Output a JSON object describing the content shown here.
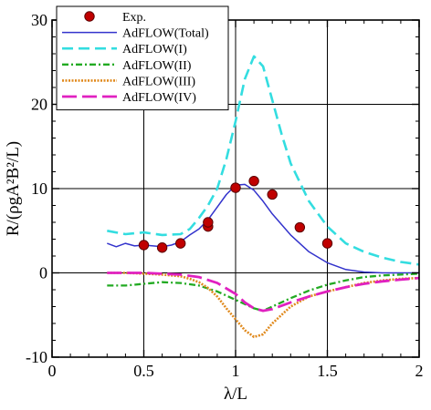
{
  "chart_data": {
    "type": "line",
    "title": "",
    "xlabel": "λ/L",
    "ylabel": "R/(ρgA²B²/L)",
    "xlim": [
      0,
      2
    ],
    "ylim": [
      -10,
      30
    ],
    "x_ticks": [
      0,
      0.5,
      1,
      1.5,
      2
    ],
    "y_ticks": [
      -10,
      0,
      10,
      20,
      30
    ],
    "x_tick_labels": [
      "0",
      "0.5",
      "1",
      "1.5",
      "2"
    ],
    "y_tick_labels": [
      "-10",
      "0",
      "10",
      "20",
      "30"
    ],
    "grid": true,
    "legend_position": "top-left",
    "series": [
      {
        "name": "Exp.",
        "style": "markers",
        "color": "#c00000",
        "x": [
          0.5,
          0.6,
          0.7,
          0.85,
          0.85,
          1.0,
          1.1,
          1.2,
          1.35,
          1.5
        ],
        "y": [
          3.3,
          3.0,
          3.5,
          5.5,
          6.0,
          10.1,
          10.9,
          9.3,
          5.4,
          3.5
        ]
      },
      {
        "name": "AdFLOW(Total)",
        "style": "solid",
        "color": "#3333cc",
        "x": [
          0.3,
          0.35,
          0.4,
          0.45,
          0.5,
          0.55,
          0.6,
          0.65,
          0.7,
          0.75,
          0.8,
          0.85,
          0.9,
          0.95,
          1.0,
          1.05,
          1.1,
          1.15,
          1.2,
          1.3,
          1.4,
          1.5,
          1.6,
          1.7,
          1.8,
          1.9,
          2.0
        ],
        "y": [
          3.5,
          3.1,
          3.5,
          3.2,
          3.3,
          3.2,
          3.1,
          3.3,
          3.7,
          4.5,
          5.2,
          6.3,
          7.8,
          9.3,
          10.4,
          10.5,
          9.8,
          8.5,
          7.0,
          4.5,
          2.5,
          1.2,
          0.4,
          0.1,
          0.0,
          0.0,
          0.0
        ]
      },
      {
        "name": "AdFLOW(I)",
        "style": "dashed",
        "color": "#33dde0",
        "x": [
          0.3,
          0.4,
          0.5,
          0.6,
          0.7,
          0.75,
          0.8,
          0.85,
          0.9,
          0.95,
          1.0,
          1.05,
          1.1,
          1.15,
          1.2,
          1.25,
          1.3,
          1.4,
          1.5,
          1.6,
          1.7,
          1.8,
          1.9,
          2.0
        ],
        "y": [
          5.0,
          4.6,
          4.8,
          4.5,
          4.6,
          5.2,
          6.5,
          8.0,
          10.0,
          13.5,
          18.0,
          23.0,
          25.7,
          24.5,
          20.5,
          16.5,
          13.0,
          8.5,
          5.5,
          3.5,
          2.5,
          1.8,
          1.3,
          1.0
        ]
      },
      {
        "name": "AdFLOW(II)",
        "style": "dashdot",
        "color": "#22aa22",
        "x": [
          0.3,
          0.4,
          0.5,
          0.6,
          0.7,
          0.8,
          0.9,
          1.0,
          1.1,
          1.15,
          1.2,
          1.3,
          1.4,
          1.5,
          1.6,
          1.7,
          1.8,
          1.9,
          2.0
        ],
        "y": [
          -1.5,
          -1.5,
          -1.3,
          -1.1,
          -1.2,
          -1.5,
          -2.2,
          -3.2,
          -4.2,
          -4.5,
          -4.0,
          -3.0,
          -2.1,
          -1.4,
          -0.9,
          -0.5,
          -0.3,
          -0.2,
          -0.1
        ]
      },
      {
        "name": "AdFLOW(III)",
        "style": "dotted-dense",
        "color": "#e08a1e",
        "x": [
          0.3,
          0.4,
          0.5,
          0.6,
          0.7,
          0.75,
          0.8,
          0.85,
          0.9,
          0.95,
          1.0,
          1.05,
          1.1,
          1.15,
          1.2,
          1.3,
          1.4,
          1.5,
          1.6,
          1.7,
          1.8,
          1.9,
          2.0
        ],
        "y": [
          0.0,
          0.0,
          -0.1,
          -0.2,
          -0.4,
          -0.7,
          -1.1,
          -1.8,
          -2.8,
          -4.2,
          -5.5,
          -6.8,
          -7.6,
          -7.3,
          -6.0,
          -4.0,
          -2.8,
          -2.2,
          -1.7,
          -1.2,
          -0.9,
          -0.7,
          -0.6
        ]
      },
      {
        "name": "AdFLOW(IV)",
        "style": "longdash",
        "color": "#e020c0",
        "x": [
          0.3,
          0.4,
          0.5,
          0.6,
          0.7,
          0.8,
          0.9,
          1.0,
          1.05,
          1.1,
          1.15,
          1.2,
          1.3,
          1.4,
          1.5,
          1.6,
          1.7,
          1.8,
          1.9,
          2.0
        ],
        "y": [
          0.0,
          0.0,
          0.0,
          -0.1,
          -0.2,
          -0.5,
          -1.2,
          -2.5,
          -3.5,
          -4.2,
          -4.5,
          -4.3,
          -3.5,
          -2.8,
          -2.2,
          -1.7,
          -1.3,
          -1.0,
          -0.8,
          -0.6
        ]
      }
    ]
  }
}
